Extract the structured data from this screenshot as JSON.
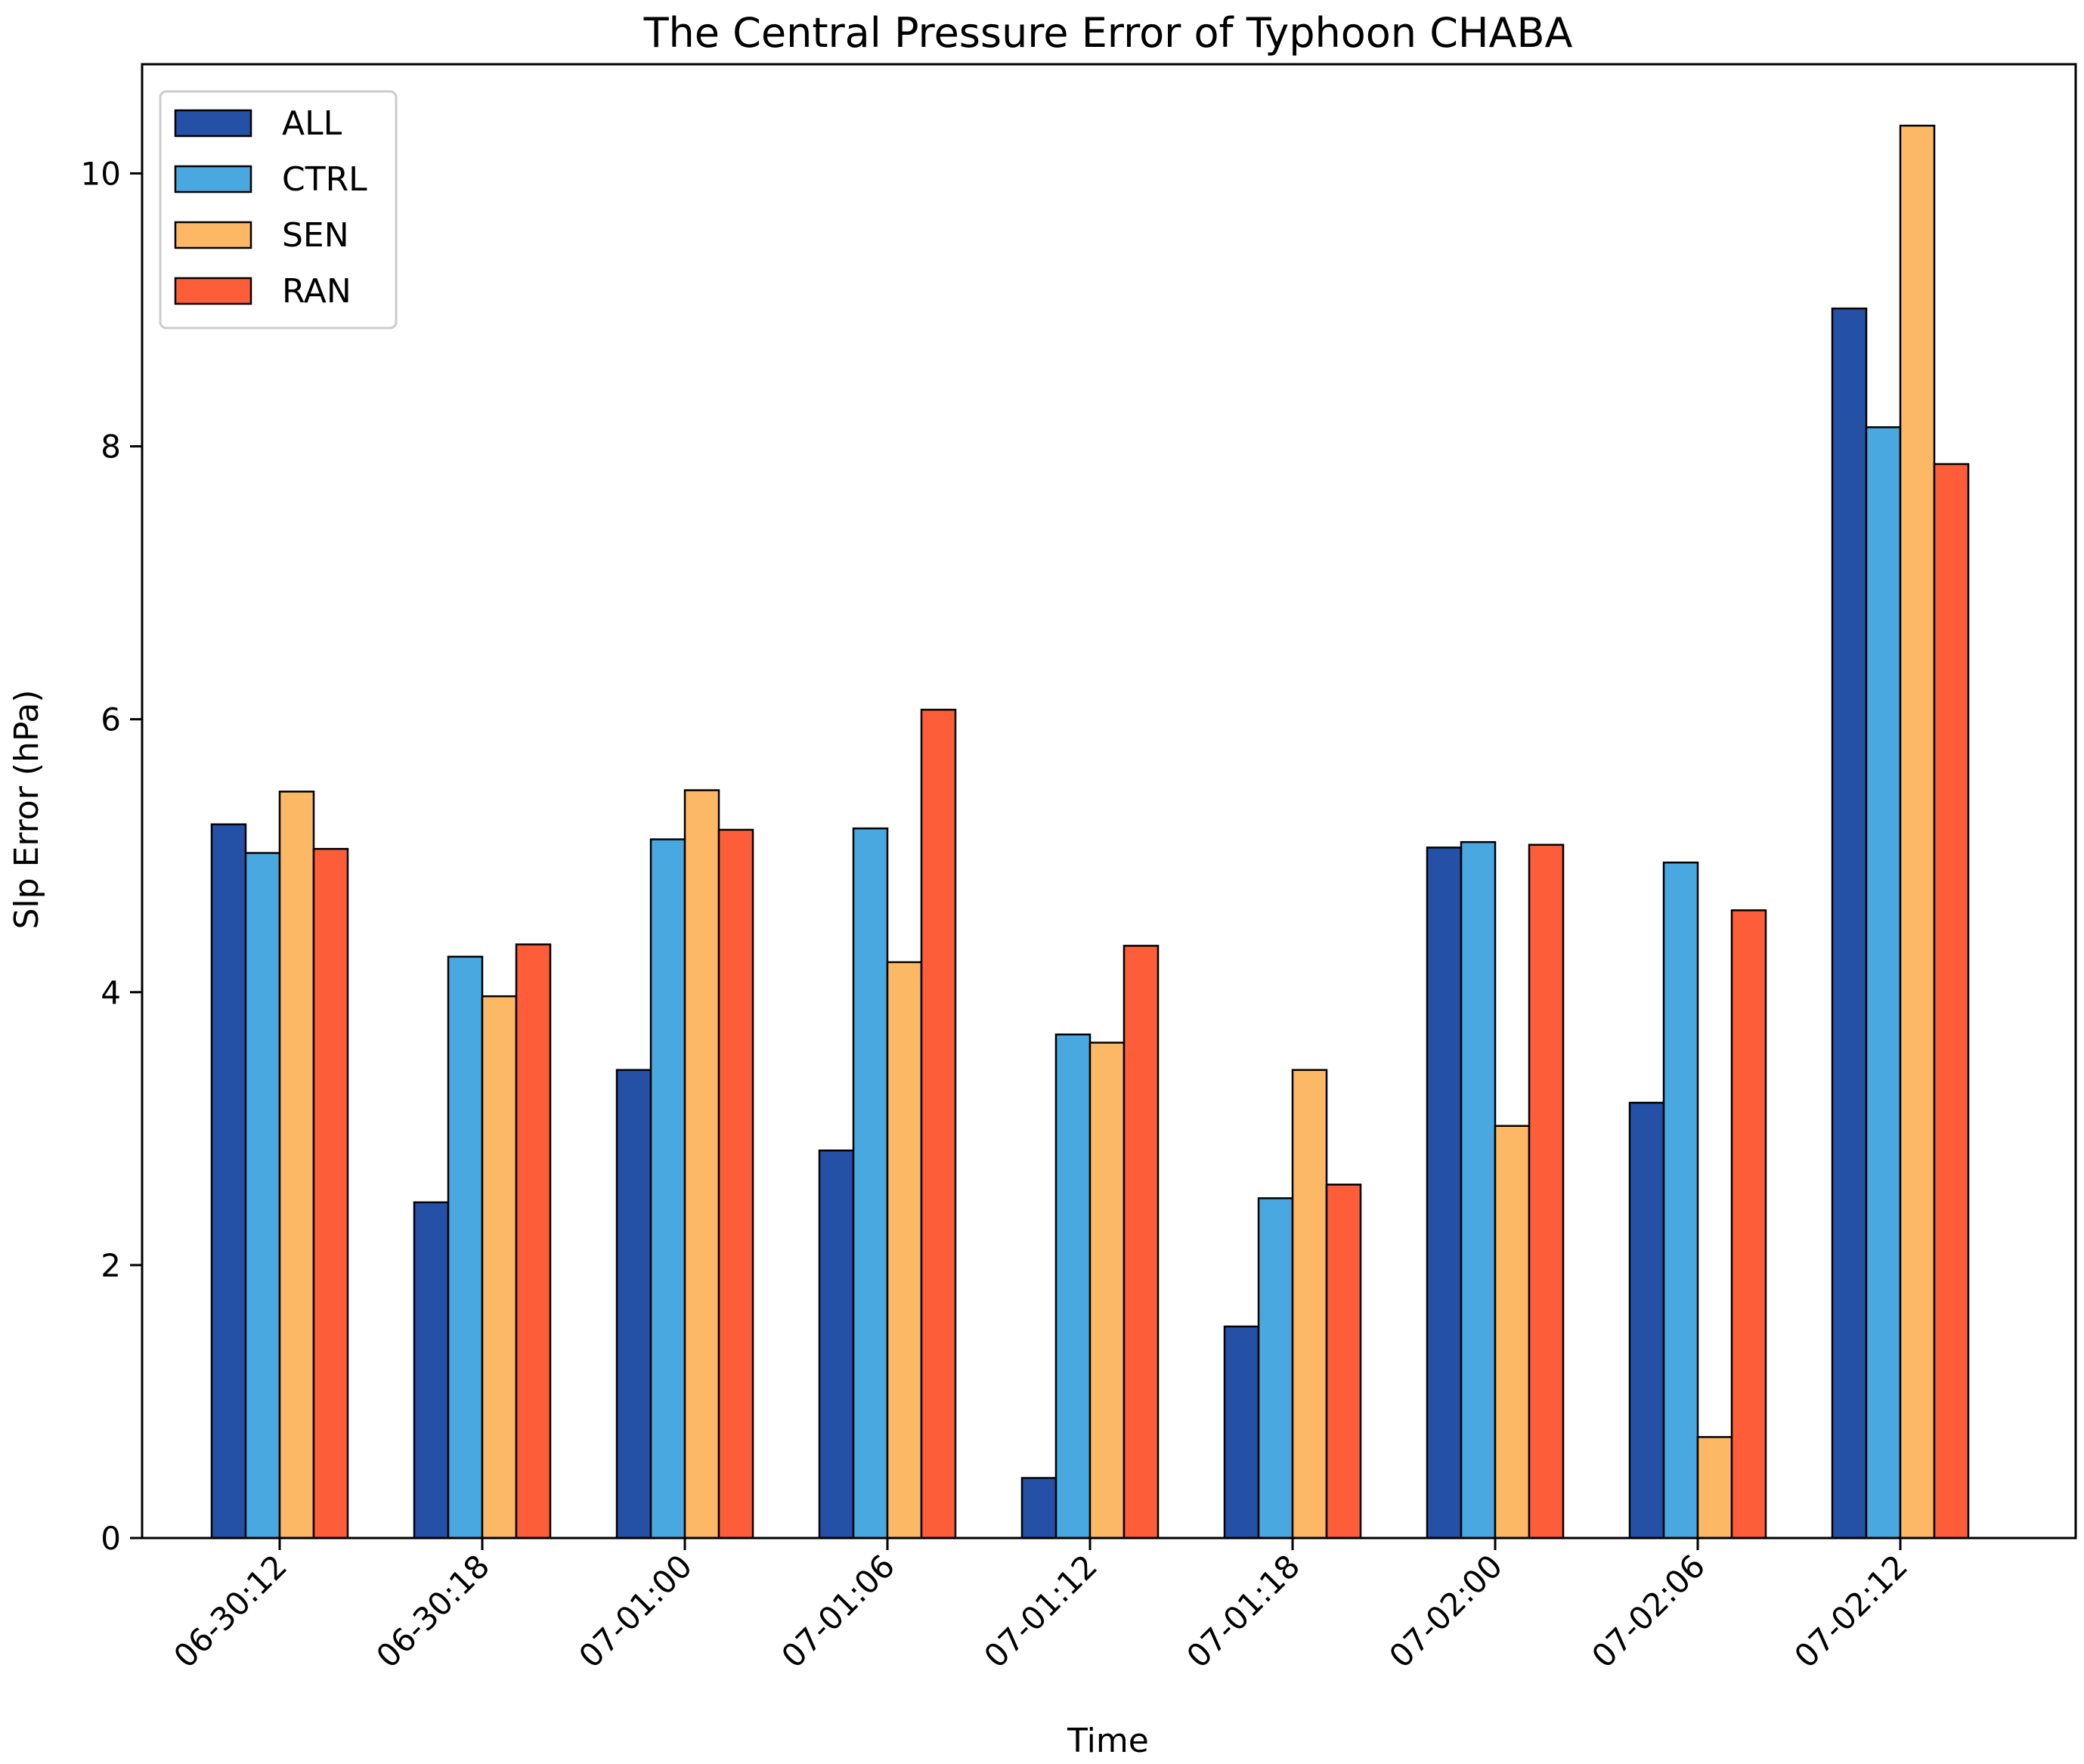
{
  "chart_data": {
    "type": "bar",
    "title": "The Central Pressure Error of Typhoon CHABA",
    "xlabel": "Time",
    "ylabel": "Slp Error (hPa)",
    "ylim": [
      0,
      10.8
    ],
    "yticks": [
      0,
      2,
      4,
      6,
      8,
      10
    ],
    "legend_position": "upper-left",
    "categories": [
      "06-30:12",
      "06-30:18",
      "07-01:00",
      "07-01:06",
      "07-01:12",
      "07-01:18",
      "07-02:00",
      "07-02:06",
      "07-02:12"
    ],
    "series": [
      {
        "name": "ALL",
        "color": "#2451A6",
        "values": [
          5.23,
          2.46,
          3.43,
          2.84,
          0.44,
          1.55,
          5.06,
          3.19,
          9.01
        ]
      },
      {
        "name": "CTRL",
        "color": "#4AA8E0",
        "values": [
          5.02,
          4.26,
          5.12,
          5.2,
          3.69,
          2.49,
          5.1,
          4.95,
          8.14
        ]
      },
      {
        "name": "SEN",
        "color": "#FDB866",
        "values": [
          5.47,
          3.97,
          5.48,
          4.22,
          3.63,
          3.43,
          3.02,
          0.74,
          10.35
        ]
      },
      {
        "name": "RAN",
        "color": "#FE5D39",
        "values": [
          5.05,
          4.35,
          5.19,
          6.07,
          4.34,
          2.59,
          5.08,
          4.6,
          7.87
        ]
      }
    ]
  }
}
